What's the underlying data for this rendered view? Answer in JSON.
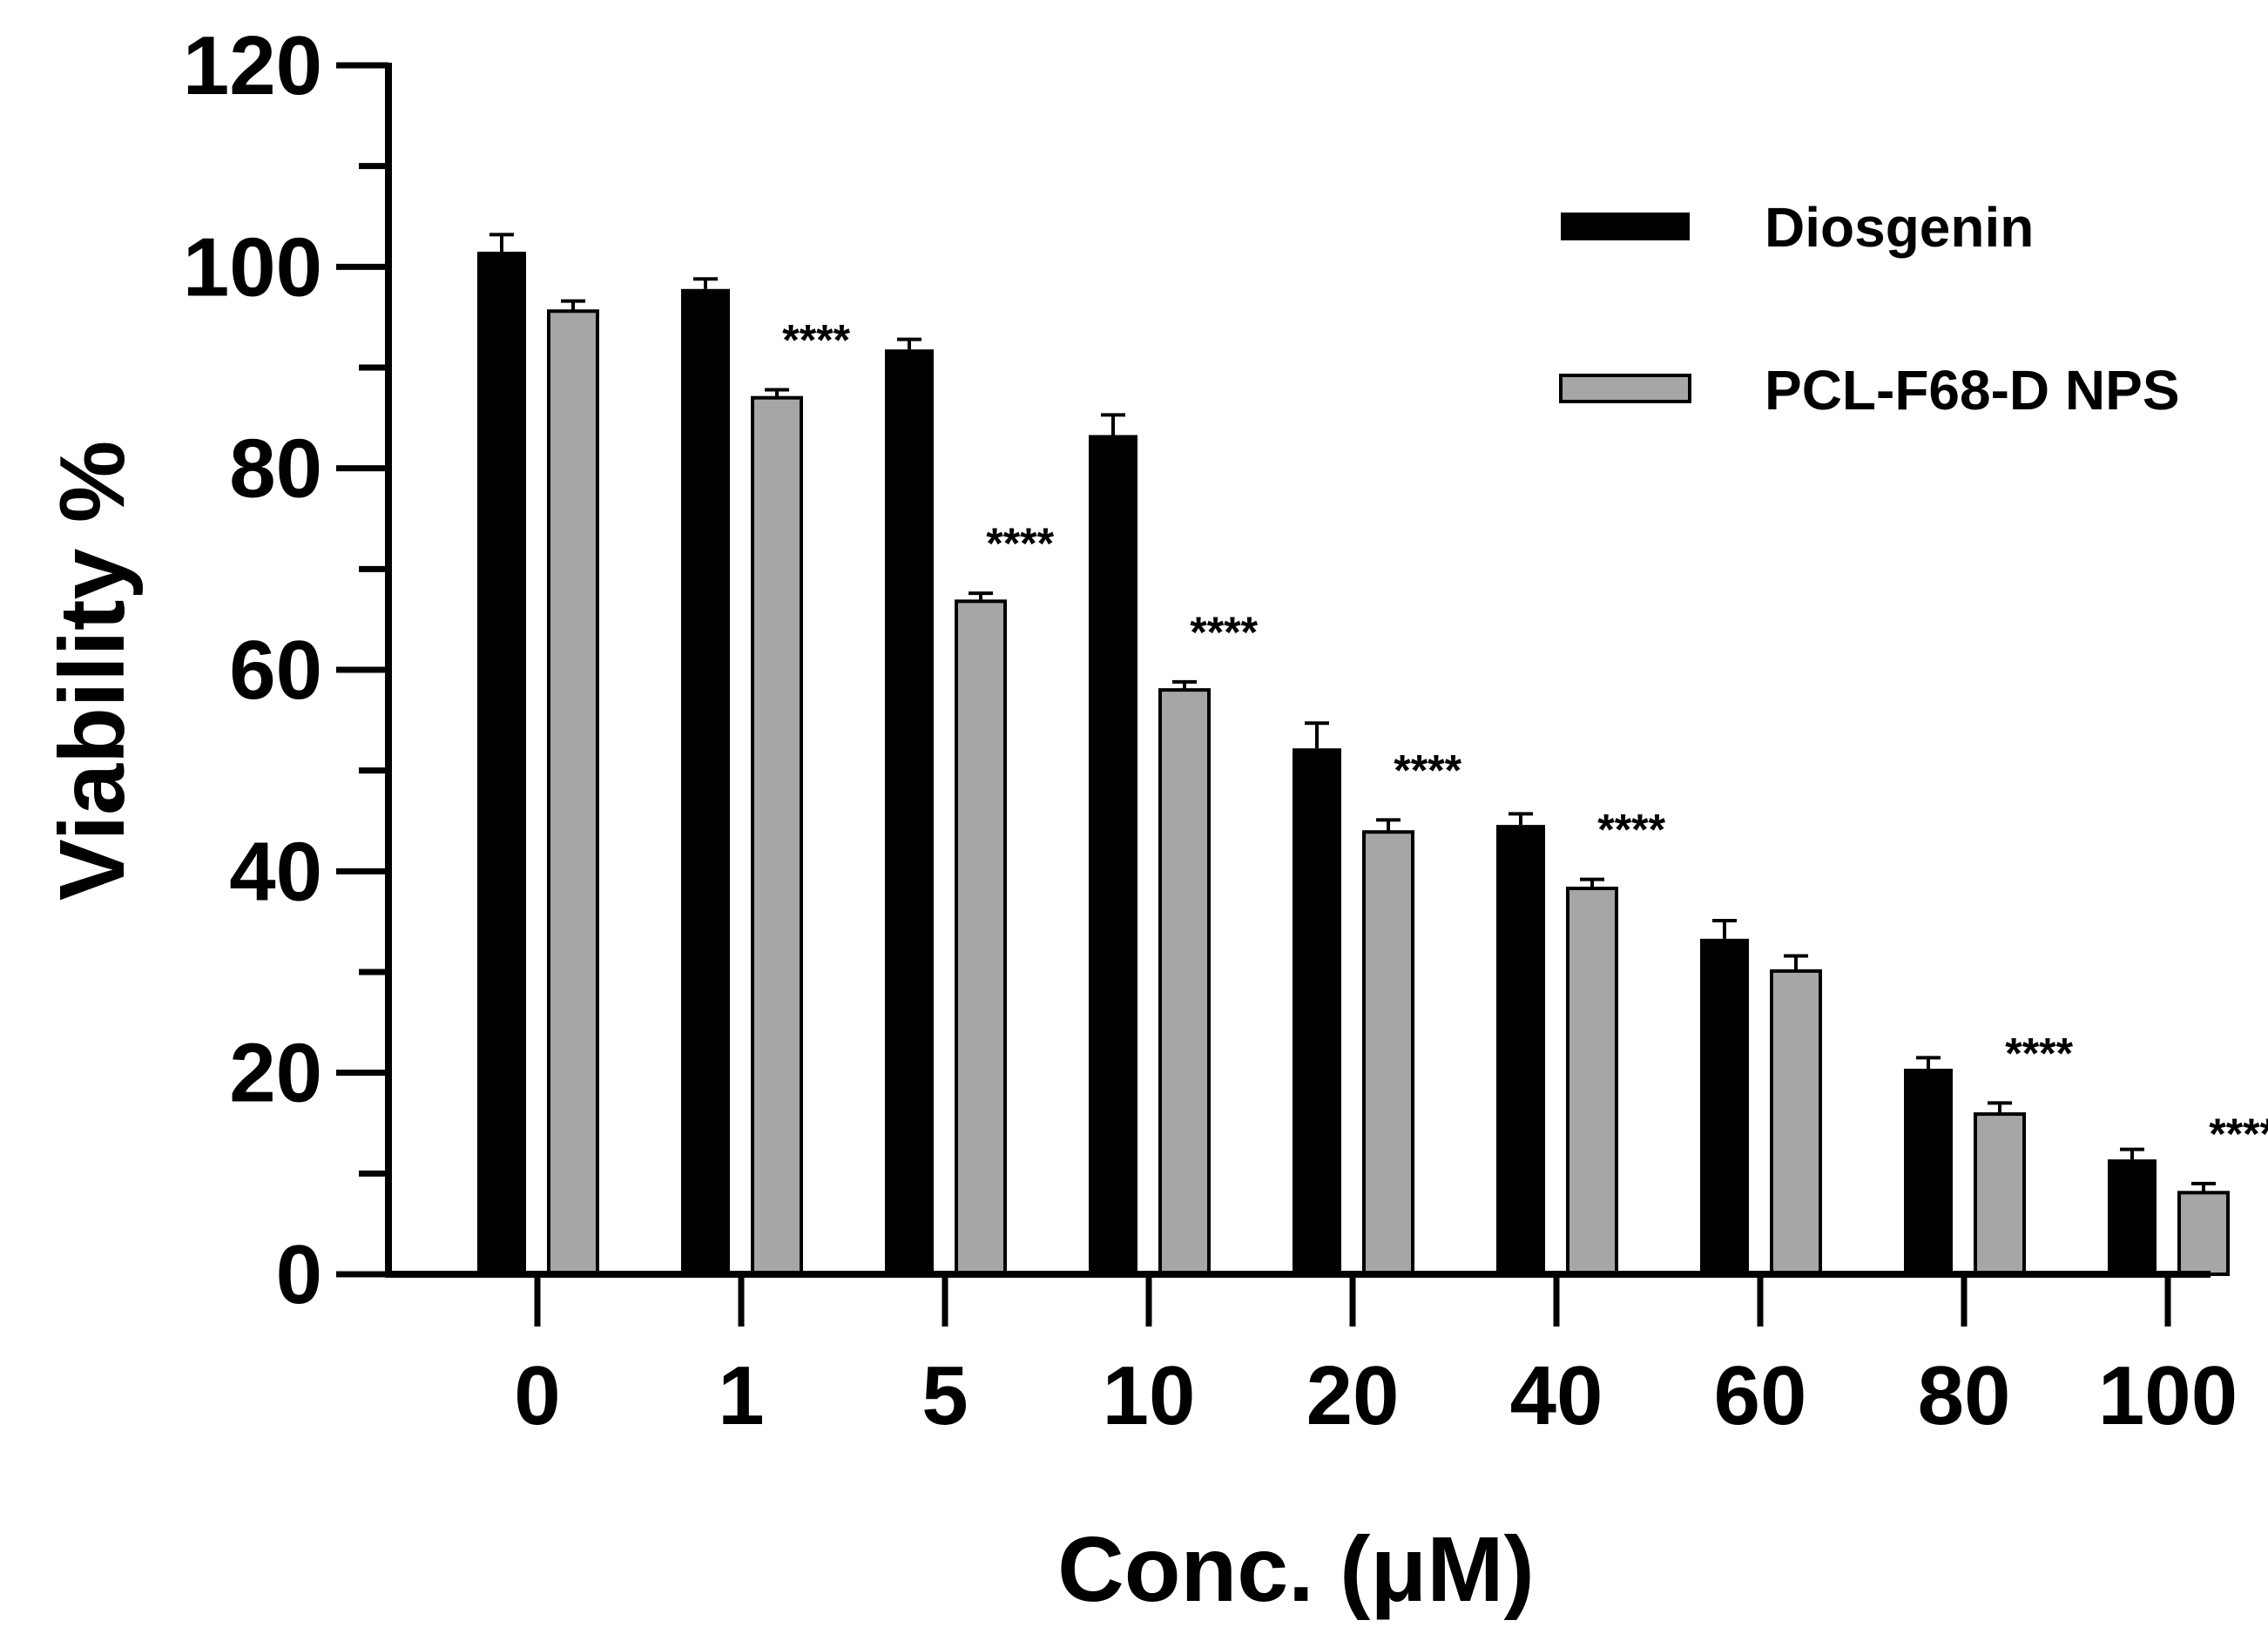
{
  "chart_data": {
    "type": "bar",
    "title": "",
    "xlabel": "Conc. (μM)",
    "ylabel": "Viability %",
    "ylim": [
      0,
      120
    ],
    "yticks": [
      0,
      20,
      40,
      60,
      80,
      100,
      120
    ],
    "categories": [
      "0",
      "1",
      "5",
      "10",
      "20",
      "40",
      "60",
      "80",
      "100"
    ],
    "series": [
      {
        "name": "Diosgenin",
        "color": "#000000",
        "values": [
          101.5,
          97.8,
          91.8,
          83.3,
          52.2,
          44.6,
          33.3,
          20.4,
          11.4
        ],
        "errors": [
          1.7,
          1.0,
          1.0,
          2.0,
          2.5,
          1.1,
          1.8,
          1.1,
          1.0
        ]
      },
      {
        "name": "PCL-F68-D NPS",
        "color": "#a6a6a6",
        "values": [
          95.6,
          87.0,
          66.8,
          58.0,
          43.9,
          38.3,
          30.1,
          15.9,
          8.1
        ],
        "errors": [
          1.0,
          0.8,
          0.8,
          0.8,
          1.2,
          0.9,
          1.5,
          1.1,
          0.9
        ]
      }
    ],
    "annotations": [
      "",
      "****",
      "****",
      "****",
      "****",
      "****",
      "",
      "****",
      "****"
    ],
    "legend_position": "top-right",
    "grid": false
  }
}
